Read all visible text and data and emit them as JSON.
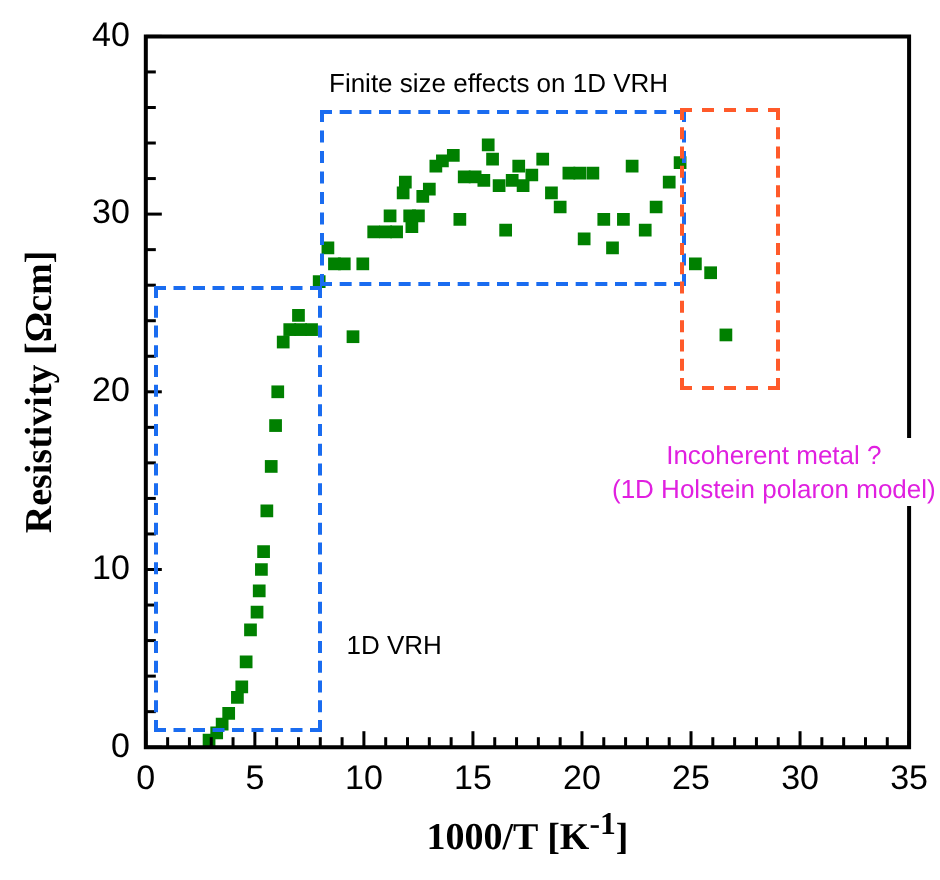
{
  "chart_data": {
    "type": "scatter",
    "xlabel": "1000/T [K$^{-1}$]",
    "ylabel": "Resistivity [Ωcm]",
    "xlim": [
      0,
      35
    ],
    "xticks": [
      0,
      5,
      10,
      15,
      20,
      25,
      30,
      35
    ],
    "ylim": [
      0,
      40
    ],
    "yticks": [
      0,
      10,
      20,
      30,
      40
    ],
    "grid": false,
    "legend": false,
    "marker": "square",
    "annotations": [
      "Finite size effects on 1D VRH",
      "1D VRH",
      "Incoherent metal ?\n(1D Holstein polaron model)"
    ],
    "series": [
      {
        "color": "#008000",
        "x": [
          2.9,
          3.25,
          3.5,
          3.8,
          4.2,
          4.4,
          4.6,
          4.8,
          5.1,
          5.2,
          5.3,
          5.4,
          5.55,
          5.75,
          5.95,
          6.05,
          6.3,
          6.6,
          7.0,
          7.1,
          7.6,
          9.5,
          7.95,
          8.35,
          8.65,
          9.1,
          9.95,
          10.45,
          11.0,
          11.2,
          11.5,
          11.8,
          11.9,
          12.1,
          12.2,
          12.5,
          12.7,
          13.0,
          13.3,
          13.6,
          14.1,
          14.4,
          14.6,
          15.1,
          15.5,
          15.7,
          15.9,
          16.2,
          16.5,
          16.8,
          17.1,
          17.3,
          17.7,
          18.2,
          18.6,
          19.0,
          19.4,
          19.9,
          20.5,
          20.1,
          21.0,
          21.4,
          21.9,
          22.3,
          22.9,
          23.4,
          24.0,
          24.5,
          25.2,
          25.9,
          26.6
        ],
        "values": [
          0.4,
          0.8,
          1.3,
          1.9,
          2.8,
          3.4,
          4.8,
          6.6,
          7.6,
          8.8,
          10.0,
          11.0,
          13.3,
          15.8,
          18.1,
          20.0,
          22.8,
          23.5,
          24.3,
          23.5,
          23.5,
          23.1,
          26.2,
          28.1,
          27.2,
          27.2,
          27.2,
          29.0,
          29.0,
          29.9,
          29.0,
          31.2,
          31.8,
          29.9,
          29.3,
          29.9,
          31.0,
          31.4,
          32.7,
          33.0,
          33.3,
          29.7,
          32.1,
          32.1,
          31.9,
          33.9,
          33.1,
          31.6,
          29.1,
          31.9,
          32.7,
          31.6,
          32.2,
          33.1,
          31.2,
          30.4,
          32.3,
          32.3,
          32.3,
          28.6,
          29.7,
          28.1,
          29.7,
          32.7,
          29.1,
          30.4,
          31.8,
          32.9,
          27.2,
          26.7,
          23.2
        ]
      }
    ]
  }
}
